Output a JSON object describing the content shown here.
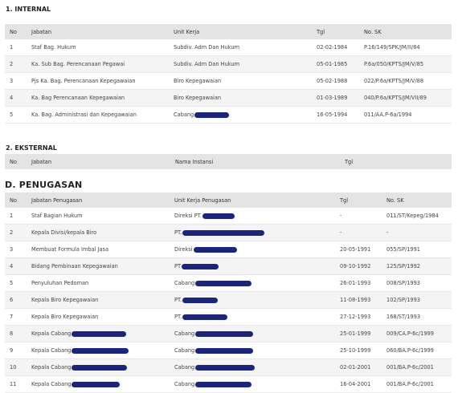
{
  "internal": {
    "title": "1. INTERNAL",
    "headers": [
      "No",
      "Jabatan",
      "Unit Kerja",
      "Tgl",
      "No. SK"
    ],
    "rows": [
      {
        "no": "1",
        "jabatan": "Staf Bag. Hukum",
        "unit": "Subdiv. Adm Dan Hukum",
        "tgl": "02-02-1984",
        "sk": "P.16/149/SPK/JM/II/84"
      },
      {
        "no": "2",
        "jabatan": "Ka. Sub Bag. Perencanaan Pegawai",
        "unit": "Subdiv. Adm Dan Hukum",
        "tgl": "05-01-1985",
        "sk": "P.6a/050/KPTS/JM/V/85"
      },
      {
        "no": "3",
        "jabatan": "Pjs Ka. Bag. Perencanaan Kepegawaian",
        "unit": "Biro Kepegawaian",
        "tgl": "05-02-1988",
        "sk": "022/P.6a/KPTS/JM/V/88"
      },
      {
        "no": "4",
        "jabatan": "Ka. Bag Perencanaan Kepegawaian",
        "unit": "Biro Kepegawaian",
        "tgl": "01-03-1989",
        "sk": "040/P.6a/KPTS/JM/VII/89"
      },
      {
        "no": "5",
        "jabatan": "Ka. Bag. Administrasi dan Kepegawaian",
        "unit": "Cabang",
        "tgl": "16-05-1994",
        "sk": "011/AA.P-6a/1994"
      }
    ]
  },
  "eksternal": {
    "title": "2. EKSTERNAL",
    "headers": [
      "No",
      "Jabatan",
      "Nama Instansi",
      "Tgl"
    ]
  },
  "penugasan": {
    "title": "D. PENUGASAN",
    "headers": [
      "No",
      "Jabatan Penugasan",
      "Unit Kerja Penugasan",
      "Tgl",
      "No. SK"
    ],
    "rows": [
      {
        "no": "1",
        "jabatan": "Staf Bagian Hukum",
        "unit": "Direksi PT.",
        "tgl": "-",
        "sk": "011/ST/Kepeg/1984"
      },
      {
        "no": "2",
        "jabatan": "Kepala Divisi/kepala Biro",
        "unit": "PT.",
        "tgl": "-",
        "sk": "-"
      },
      {
        "no": "3",
        "jabatan": "Membuat Formula Imbal Jasa",
        "unit": "Direksi",
        "tgl": "20-05-1991",
        "sk": "055/SP/1991"
      },
      {
        "no": "4",
        "jabatan": "Bidang Pembinaan Kepegawaian",
        "unit": "PT",
        "tgl": "09-10-1992",
        "sk": "125/SP/1992"
      },
      {
        "no": "5",
        "jabatan": "Penyuluhan Pedoman",
        "unit": "Cabang",
        "tgl": "26-01-1993",
        "sk": "008/SP/1993"
      },
      {
        "no": "6",
        "jabatan": "Kepala Biro Kepegawaian",
        "unit": "PT.",
        "tgl": "11-08-1993",
        "sk": "102/SP/1993"
      },
      {
        "no": "7",
        "jabatan": "Kepala Biro Kepegawaian",
        "unit": "PT.",
        "tgl": "27-12-1993",
        "sk": "168/ST/1993"
      },
      {
        "no": "8",
        "jabatan": "Kepala Cabang",
        "unit": "Cabang",
        "tgl": "25-01-1999",
        "sk": "009/CA.P-6c/1999"
      },
      {
        "no": "9",
        "jabatan": "Kepala Cabang",
        "unit": "Cabang",
        "tgl": "25-10-1999",
        "sk": "060/BA.P-6c/1999"
      },
      {
        "no": "10",
        "jabatan": "Kepala Cabang",
        "unit": "Cabang",
        "tgl": "02-01-2001",
        "sk": "001/BA.P-6c/2001"
      },
      {
        "no": "11",
        "jabatan": "Kepala Cabang",
        "unit": "Cabang",
        "tgl": "16-04-2001",
        "sk": "001/BA.P-6c/2001"
      }
    ]
  },
  "colors": {
    "redaction": "#1a2580",
    "header_bg": "#e4e4e4",
    "row_alt": "#f4f4f4"
  }
}
